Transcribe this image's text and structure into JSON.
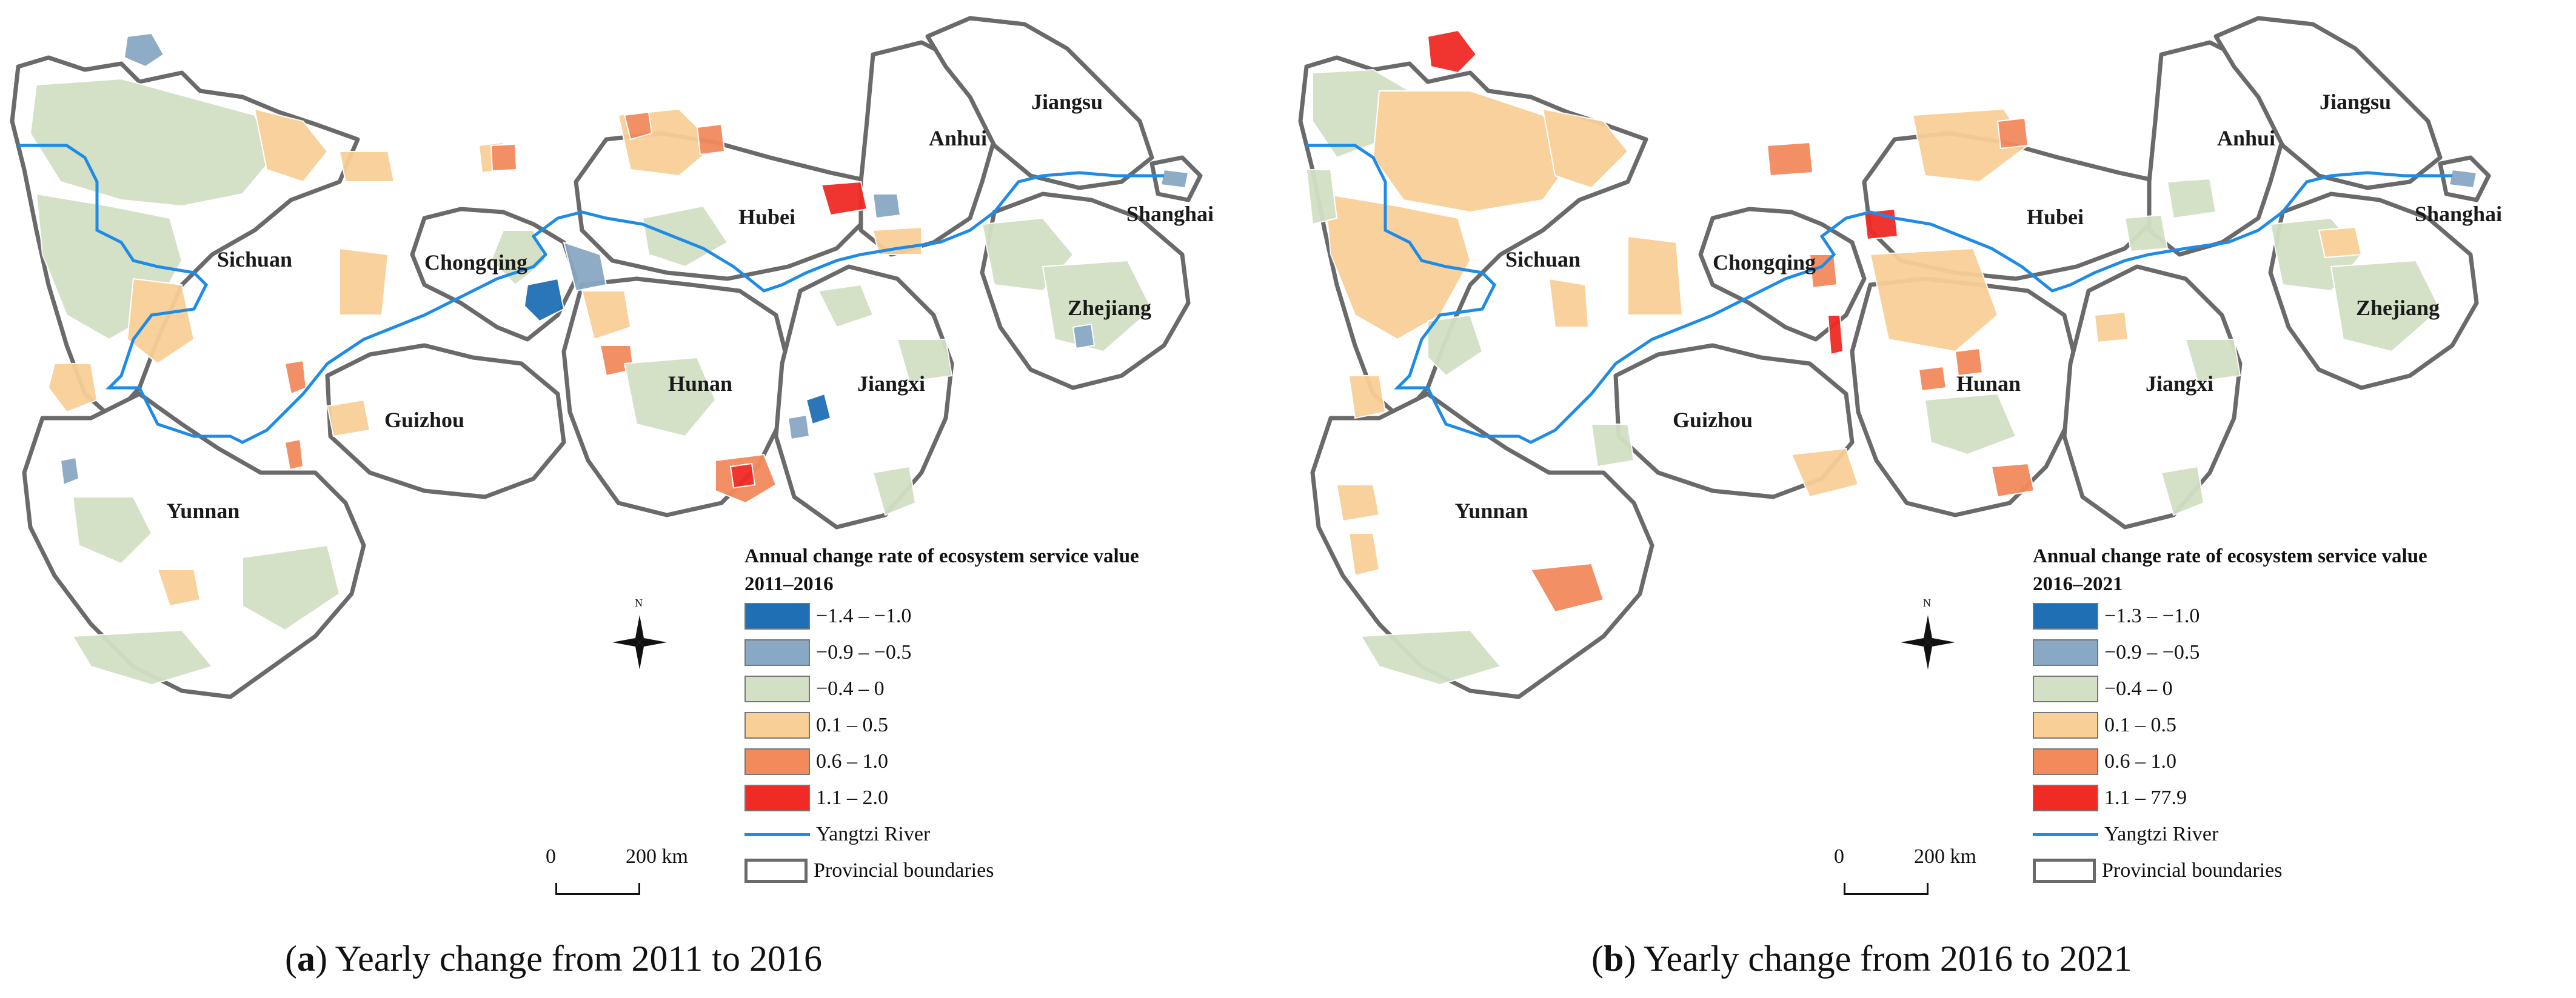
{
  "panels": [
    {
      "caption_letter": "a",
      "caption_text": "Yearly change from 2011 to 2016",
      "legend_title": "Annual change rate of ecosystem service value",
      "legend_period": "2011–2016",
      "classes": [
        {
          "label": "−1.4 – −1.0",
          "color": "#1f6fb5"
        },
        {
          "label": "−0.9 – −0.5",
          "color": "#89a8c4"
        },
        {
          "label": "−0.4 – 0",
          "color": "#d3e0c5"
        },
        {
          "label": "0.1 – 0.5",
          "color": "#f9cf98"
        },
        {
          "label": "0.6 – 1.0",
          "color": "#f38a5c"
        },
        {
          "label": "1.1 – 2.0",
          "color": "#f02a24"
        }
      ]
    },
    {
      "caption_letter": "b",
      "caption_text": "Yearly change from 2016 to 2021",
      "legend_title": "Annual change rate of ecosystem service value",
      "legend_period": "2016–2021",
      "classes": [
        {
          "label": "−1.3 – −1.0",
          "color": "#1f6fb5"
        },
        {
          "label": "−0.9 – −0.5",
          "color": "#89a8c4"
        },
        {
          "label": "−0.4 – 0",
          "color": "#d3e0c5"
        },
        {
          "label": "0.1 – 0.5",
          "color": "#f9cf98"
        },
        {
          "label": "0.6 – 1.0",
          "color": "#f38a5c"
        },
        {
          "label": "1.1 – 77.9",
          "color": "#f02a24"
        }
      ]
    }
  ],
  "legend_common": {
    "river_label": "Yangtzi River",
    "boundary_label": "Provincial boundaries",
    "river_color": "#1e8ce6",
    "boundary_color": "#6a6a6a"
  },
  "scale": {
    "zero": "0",
    "distance": "200 km"
  },
  "north": "N",
  "provinces": {
    "sichuan": "Sichuan",
    "chongqing": "Chongqing",
    "hubei": "Hubei",
    "anhui": "Anhui",
    "jiangsu": "Jiangsu",
    "shanghai": "Shanghai",
    "zhejiang": "Zhejiang",
    "guizhou": "Guizhou",
    "hunan": "Hunan",
    "jiangxi": "Jiangxi",
    "yunnan": "Yunnan"
  }
}
